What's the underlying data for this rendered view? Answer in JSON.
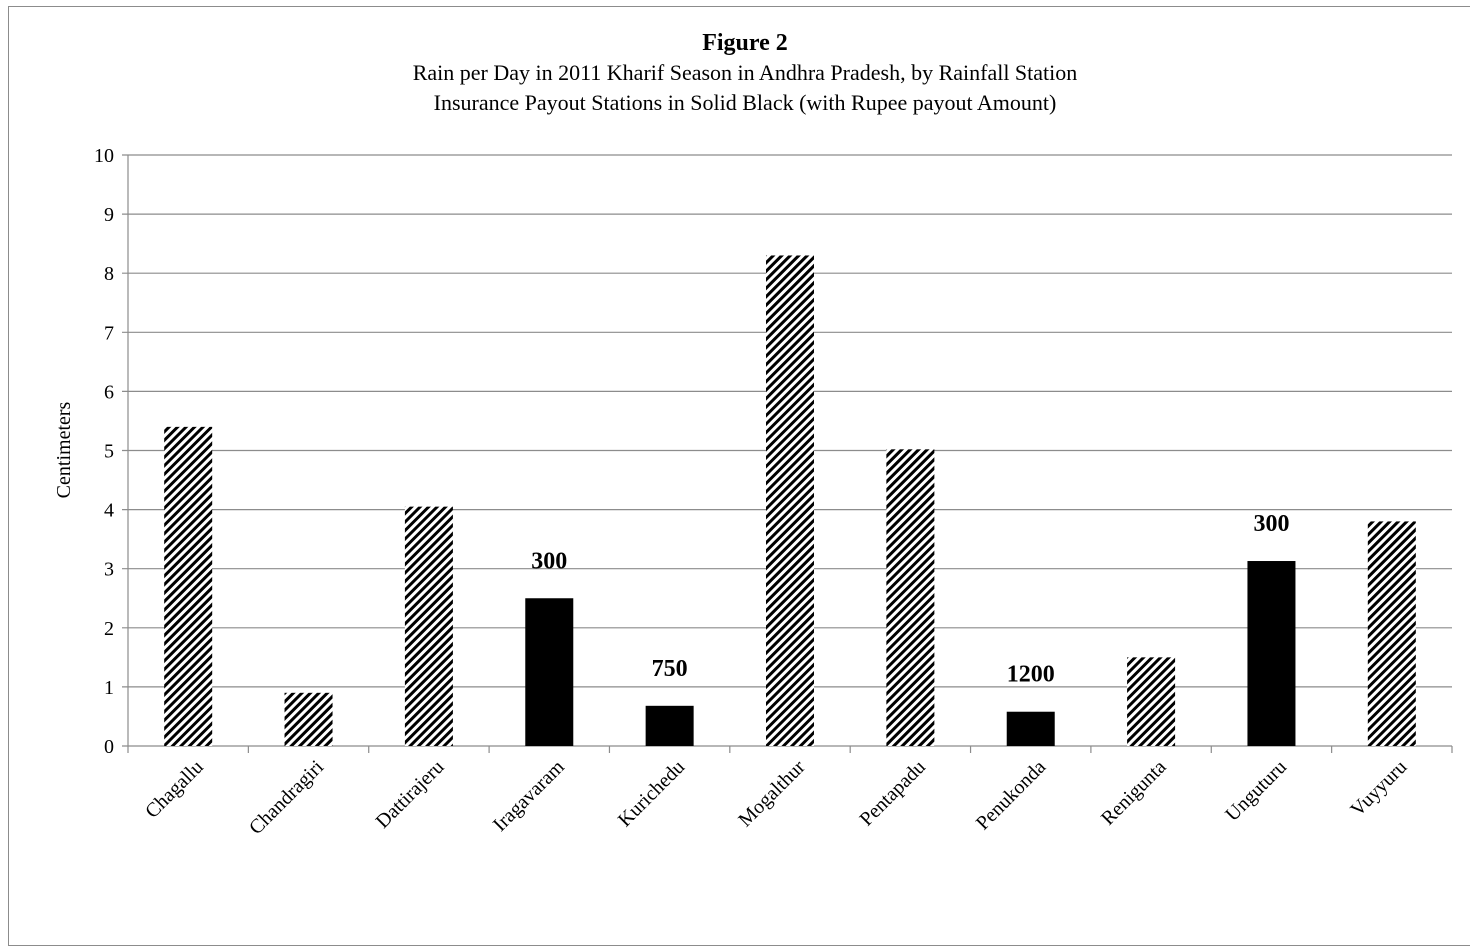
{
  "chart_data": {
    "type": "bar",
    "title": "Figure 2",
    "subtitle_lines": [
      "Rain per Day in 2011 Kharif  Season in Andhra Pradesh, by Rainfall Station",
      "Insurance Payout Stations in Solid Black (with Rupee payout Amount)"
    ],
    "xlabel": "",
    "ylabel": "Centimeters",
    "ylim": [
      0,
      10
    ],
    "yticks": [
      "0",
      "1",
      "2",
      "3",
      "4",
      "5",
      "6",
      "7",
      "8",
      "9",
      "10"
    ],
    "grid": true,
    "categories": [
      "Chagallu",
      "Chandragiri",
      "Dattirajeru",
      "Iragavaram",
      "Kurichedu",
      "Mogalthur",
      "Pentapadu",
      "Penukonda",
      "Renigunta",
      "Unguturu",
      "Vuyyuru"
    ],
    "values": [
      5.4,
      0.9,
      4.05,
      2.5,
      0.68,
      8.3,
      5.02,
      0.58,
      1.5,
      3.13,
      3.8
    ],
    "payout": [
      false,
      false,
      false,
      true,
      true,
      false,
      false,
      true,
      false,
      true,
      false
    ],
    "data_labels": [
      "",
      "",
      "",
      "300",
      "750",
      "",
      "",
      "1200",
      "",
      "300",
      ""
    ],
    "colors": {
      "payout": "#000000",
      "hatch": "#000000",
      "grid": "#8c8c8c"
    }
  }
}
